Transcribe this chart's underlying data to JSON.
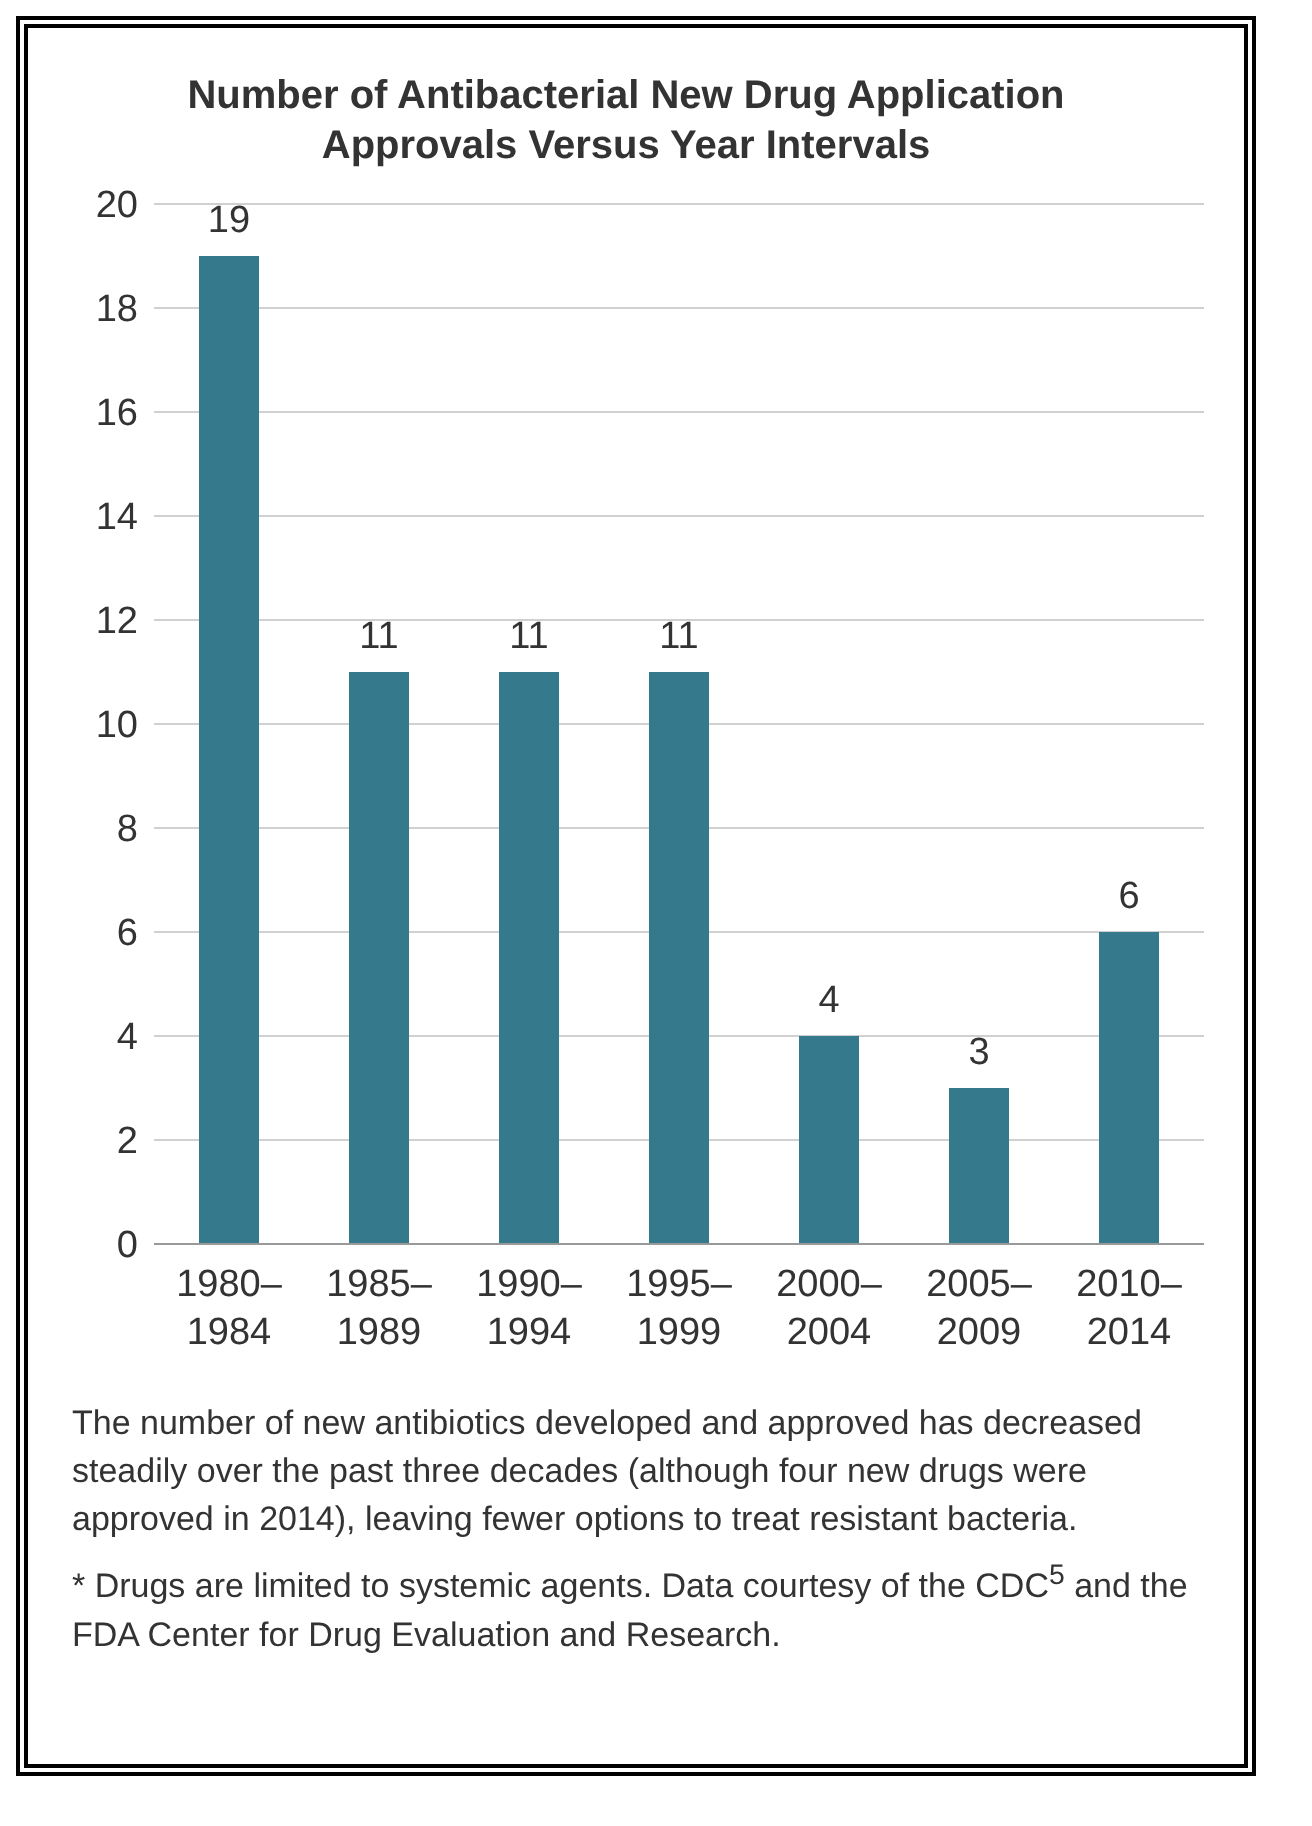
{
  "chart_data": {
    "type": "bar",
    "title": "Number of Antibacterial New Drug Application Approvals Versus Year Intervals",
    "categories": [
      "1980–1984",
      "1985–1989",
      "1990–1994",
      "1995–1999",
      "2000–2004",
      "2005–2009",
      "2010–2014"
    ],
    "values": [
      19,
      11,
      11,
      11,
      4,
      3,
      6
    ],
    "color": "#357a8c",
    "ylim": [
      0,
      20
    ],
    "yticks": [
      0,
      2,
      4,
      6,
      8,
      10,
      12,
      14,
      16,
      18,
      20
    ],
    "grid": "y",
    "data_labels": true,
    "annotations": [
      "The number of new antibiotics developed and approved has decreased steadily over the past three decades (although four new drugs were approved in 2014), leaving fewer options to treat resistant bacteria.",
      "* Drugs are limited to systemic agents. Data courtesy of the CDC$^{5}$ and the FDA Center for Drug Evaluation and Research."
    ]
  }
}
